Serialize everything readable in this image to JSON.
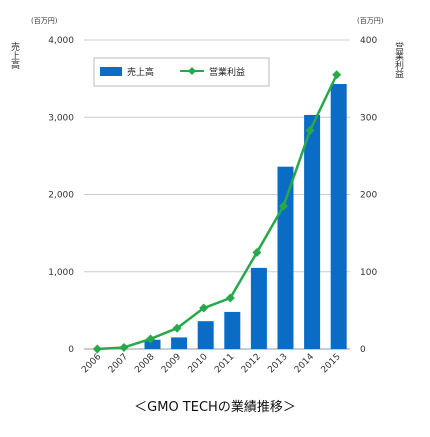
{
  "chart_data": {
    "type": "bar",
    "title": "",
    "categories": [
      "2006",
      "2007",
      "2008",
      "2009",
      "2010",
      "2011",
      "2012",
      "2013",
      "2014",
      "2015"
    ],
    "series": [
      {
        "name": "売上高",
        "type": "bar",
        "axis": "left",
        "color": "#0a6cc4",
        "values": [
          0,
          0,
          120,
          150,
          360,
          480,
          1050,
          2360,
          3030,
          3430
        ]
      },
      {
        "name": "営業利益",
        "type": "line",
        "axis": "right",
        "color": "#27a84a",
        "values": [
          0,
          2,
          13,
          27,
          53,
          66,
          125,
          185,
          283,
          355
        ]
      }
    ],
    "left_axis": {
      "label": "売上高",
      "unit": "(百万円)",
      "ylim": [
        0,
        4000
      ],
      "ticks": [
        "0",
        "1,000",
        "2,000",
        "3,000",
        "4,000"
      ]
    },
    "right_axis": {
      "label": "営業利益",
      "unit": "(百万円)",
      "ylim": [
        0,
        400
      ],
      "ticks": [
        "0",
        "100",
        "200",
        "300",
        "400"
      ]
    },
    "grid": true,
    "legend": "top-left"
  },
  "caption": "＜GMO TECHの業績推移＞"
}
